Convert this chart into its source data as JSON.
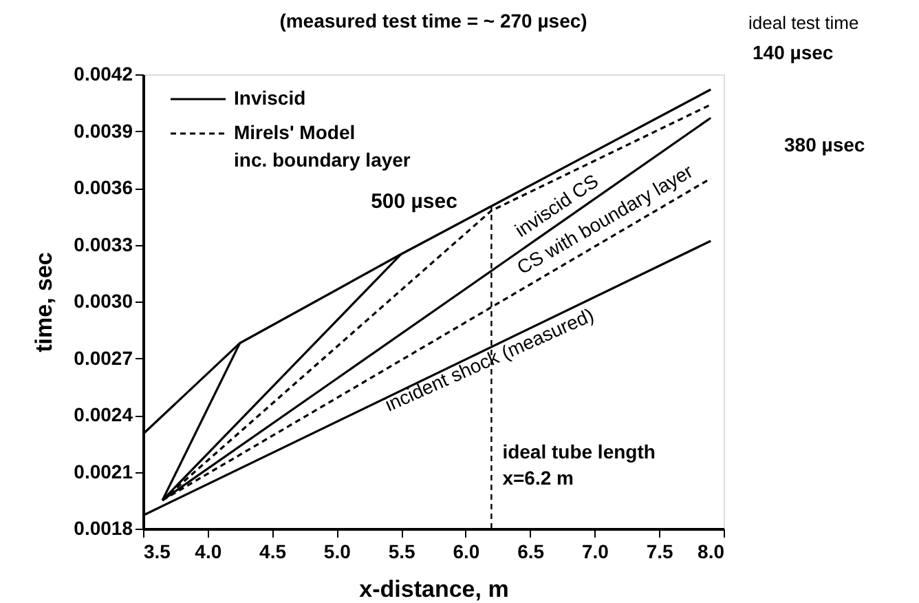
{
  "chart_data": {
    "type": "line",
    "title": "(measured test time = ~ 270 µsec)",
    "xlabel": "x-distance, m",
    "ylabel": "time, sec",
    "xlim": [
      3.5,
      8.0
    ],
    "ylim": [
      0.0018,
      0.0042
    ],
    "xticks": [
      3.5,
      {
        "value": 4,
        "label": "4.0"
      },
      4.5,
      {
        "value": 5,
        "label": "5.0"
      },
      5.5,
      {
        "value": 6,
        "label": "6.0"
      },
      6.5,
      {
        "value": 7,
        "label": "7.0"
      },
      7.5,
      {
        "value": 8,
        "label": "8.0"
      }
    ],
    "yticks": [
      0.0018,
      0.0021,
      0.0024,
      0.0027,
      {
        "value": 0.003,
        "label": "0.0030"
      },
      0.0033,
      0.0036,
      0.0039,
      0.0042
    ],
    "grid": false,
    "legend": "top left",
    "series": [
      {
        "name": "Inviscid",
        "color": "#000000",
        "line_style": "solid",
        "x": [
          3.65,
          7.9
        ],
        "values": [
          0.00195,
          0.00397
        ]
      },
      {
        "name": "Mirels' Model\ninc. boundary layer",
        "color": "#000000",
        "line_style": "dashed",
        "x": [
          3.65,
          7.9
        ],
        "values": [
          0.00195,
          0.00365
        ]
      },
      {
        "color": "#000000",
        "line_style": "solid",
        "x": [
          3.5,
          4.25,
          5.5,
          7.9
        ],
        "values": [
          0.0023,
          0.00278,
          0.00325,
          0.00412
        ]
      },
      {
        "color": "#000000",
        "line_style": "solid",
        "x": [
          3.65,
          4.25
        ],
        "values": [
          0.00195,
          0.00278
        ]
      },
      {
        "color": "#000000",
        "line_style": "solid",
        "x": [
          3.65,
          5.5
        ],
        "values": [
          0.00195,
          0.00325
        ]
      },
      {
        "color": "#000000",
        "line_style": "dashed",
        "x": [
          3.65,
          6.2,
          7.9
        ],
        "values": [
          0.00195,
          0.00348,
          0.00404
        ]
      },
      {
        "color": "#000000",
        "line_style": "solid",
        "x": [
          3.5,
          7.9
        ],
        "values": [
          0.00187,
          0.00332
        ]
      }
    ],
    "ref_lines": [
      {
        "axis": "x",
        "value": 6.2,
        "label": "ideal tube length\nx=6.2 m",
        "line_style": "dashed"
      }
    ],
    "annotations": [
      "500 µsec",
      "inviscid CS",
      "CS with boundary layer",
      "incident shock (measured)",
      "ideal test time",
      "140 µsec",
      "380 µsec"
    ]
  }
}
